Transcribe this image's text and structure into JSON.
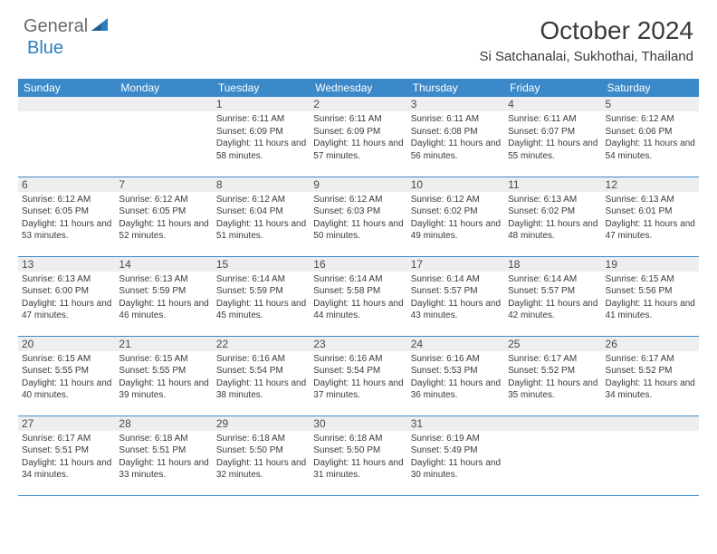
{
  "logo": {
    "text_general": "General",
    "text_blue": "Blue",
    "triangle_color": "#2a7fbf"
  },
  "header": {
    "title": "October 2024",
    "location": "Si Satchanalai, Sukhothai, Thailand"
  },
  "colors": {
    "header_bg": "#3b89c9",
    "header_text": "#ffffff",
    "daynum_bg": "#eceef0",
    "body_text": "#3a3a3a",
    "border": "#3b89c9",
    "logo_gray": "#6a6a6a",
    "logo_blue": "#2a7fbf"
  },
  "typography": {
    "title_fontsize": 28,
    "location_fontsize": 15,
    "dayheader_fontsize": 12,
    "daynum_fontsize": 12,
    "body_fontsize": 10
  },
  "calendar": {
    "type": "table",
    "columns": [
      "Sunday",
      "Monday",
      "Tuesday",
      "Wednesday",
      "Thursday",
      "Friday",
      "Saturday"
    ],
    "weeks": [
      [
        {
          "day": "",
          "sunrise": "",
          "sunset": "",
          "daylight": ""
        },
        {
          "day": "",
          "sunrise": "",
          "sunset": "",
          "daylight": ""
        },
        {
          "day": "1",
          "sunrise": "Sunrise: 6:11 AM",
          "sunset": "Sunset: 6:09 PM",
          "daylight": "Daylight: 11 hours and 58 minutes."
        },
        {
          "day": "2",
          "sunrise": "Sunrise: 6:11 AM",
          "sunset": "Sunset: 6:09 PM",
          "daylight": "Daylight: 11 hours and 57 minutes."
        },
        {
          "day": "3",
          "sunrise": "Sunrise: 6:11 AM",
          "sunset": "Sunset: 6:08 PM",
          "daylight": "Daylight: 11 hours and 56 minutes."
        },
        {
          "day": "4",
          "sunrise": "Sunrise: 6:11 AM",
          "sunset": "Sunset: 6:07 PM",
          "daylight": "Daylight: 11 hours and 55 minutes."
        },
        {
          "day": "5",
          "sunrise": "Sunrise: 6:12 AM",
          "sunset": "Sunset: 6:06 PM",
          "daylight": "Daylight: 11 hours and 54 minutes."
        }
      ],
      [
        {
          "day": "6",
          "sunrise": "Sunrise: 6:12 AM",
          "sunset": "Sunset: 6:05 PM",
          "daylight": "Daylight: 11 hours and 53 minutes."
        },
        {
          "day": "7",
          "sunrise": "Sunrise: 6:12 AM",
          "sunset": "Sunset: 6:05 PM",
          "daylight": "Daylight: 11 hours and 52 minutes."
        },
        {
          "day": "8",
          "sunrise": "Sunrise: 6:12 AM",
          "sunset": "Sunset: 6:04 PM",
          "daylight": "Daylight: 11 hours and 51 minutes."
        },
        {
          "day": "9",
          "sunrise": "Sunrise: 6:12 AM",
          "sunset": "Sunset: 6:03 PM",
          "daylight": "Daylight: 11 hours and 50 minutes."
        },
        {
          "day": "10",
          "sunrise": "Sunrise: 6:12 AM",
          "sunset": "Sunset: 6:02 PM",
          "daylight": "Daylight: 11 hours and 49 minutes."
        },
        {
          "day": "11",
          "sunrise": "Sunrise: 6:13 AM",
          "sunset": "Sunset: 6:02 PM",
          "daylight": "Daylight: 11 hours and 48 minutes."
        },
        {
          "day": "12",
          "sunrise": "Sunrise: 6:13 AM",
          "sunset": "Sunset: 6:01 PM",
          "daylight": "Daylight: 11 hours and 47 minutes."
        }
      ],
      [
        {
          "day": "13",
          "sunrise": "Sunrise: 6:13 AM",
          "sunset": "Sunset: 6:00 PM",
          "daylight": "Daylight: 11 hours and 47 minutes."
        },
        {
          "day": "14",
          "sunrise": "Sunrise: 6:13 AM",
          "sunset": "Sunset: 5:59 PM",
          "daylight": "Daylight: 11 hours and 46 minutes."
        },
        {
          "day": "15",
          "sunrise": "Sunrise: 6:14 AM",
          "sunset": "Sunset: 5:59 PM",
          "daylight": "Daylight: 11 hours and 45 minutes."
        },
        {
          "day": "16",
          "sunrise": "Sunrise: 6:14 AM",
          "sunset": "Sunset: 5:58 PM",
          "daylight": "Daylight: 11 hours and 44 minutes."
        },
        {
          "day": "17",
          "sunrise": "Sunrise: 6:14 AM",
          "sunset": "Sunset: 5:57 PM",
          "daylight": "Daylight: 11 hours and 43 minutes."
        },
        {
          "day": "18",
          "sunrise": "Sunrise: 6:14 AM",
          "sunset": "Sunset: 5:57 PM",
          "daylight": "Daylight: 11 hours and 42 minutes."
        },
        {
          "day": "19",
          "sunrise": "Sunrise: 6:15 AM",
          "sunset": "Sunset: 5:56 PM",
          "daylight": "Daylight: 11 hours and 41 minutes."
        }
      ],
      [
        {
          "day": "20",
          "sunrise": "Sunrise: 6:15 AM",
          "sunset": "Sunset: 5:55 PM",
          "daylight": "Daylight: 11 hours and 40 minutes."
        },
        {
          "day": "21",
          "sunrise": "Sunrise: 6:15 AM",
          "sunset": "Sunset: 5:55 PM",
          "daylight": "Daylight: 11 hours and 39 minutes."
        },
        {
          "day": "22",
          "sunrise": "Sunrise: 6:16 AM",
          "sunset": "Sunset: 5:54 PM",
          "daylight": "Daylight: 11 hours and 38 minutes."
        },
        {
          "day": "23",
          "sunrise": "Sunrise: 6:16 AM",
          "sunset": "Sunset: 5:54 PM",
          "daylight": "Daylight: 11 hours and 37 minutes."
        },
        {
          "day": "24",
          "sunrise": "Sunrise: 6:16 AM",
          "sunset": "Sunset: 5:53 PM",
          "daylight": "Daylight: 11 hours and 36 minutes."
        },
        {
          "day": "25",
          "sunrise": "Sunrise: 6:17 AM",
          "sunset": "Sunset: 5:52 PM",
          "daylight": "Daylight: 11 hours and 35 minutes."
        },
        {
          "day": "26",
          "sunrise": "Sunrise: 6:17 AM",
          "sunset": "Sunset: 5:52 PM",
          "daylight": "Daylight: 11 hours and 34 minutes."
        }
      ],
      [
        {
          "day": "27",
          "sunrise": "Sunrise: 6:17 AM",
          "sunset": "Sunset: 5:51 PM",
          "daylight": "Daylight: 11 hours and 34 minutes."
        },
        {
          "day": "28",
          "sunrise": "Sunrise: 6:18 AM",
          "sunset": "Sunset: 5:51 PM",
          "daylight": "Daylight: 11 hours and 33 minutes."
        },
        {
          "day": "29",
          "sunrise": "Sunrise: 6:18 AM",
          "sunset": "Sunset: 5:50 PM",
          "daylight": "Daylight: 11 hours and 32 minutes."
        },
        {
          "day": "30",
          "sunrise": "Sunrise: 6:18 AM",
          "sunset": "Sunset: 5:50 PM",
          "daylight": "Daylight: 11 hours and 31 minutes."
        },
        {
          "day": "31",
          "sunrise": "Sunrise: 6:19 AM",
          "sunset": "Sunset: 5:49 PM",
          "daylight": "Daylight: 11 hours and 30 minutes."
        },
        {
          "day": "",
          "sunrise": "",
          "sunset": "",
          "daylight": ""
        },
        {
          "day": "",
          "sunrise": "",
          "sunset": "",
          "daylight": ""
        }
      ]
    ]
  }
}
